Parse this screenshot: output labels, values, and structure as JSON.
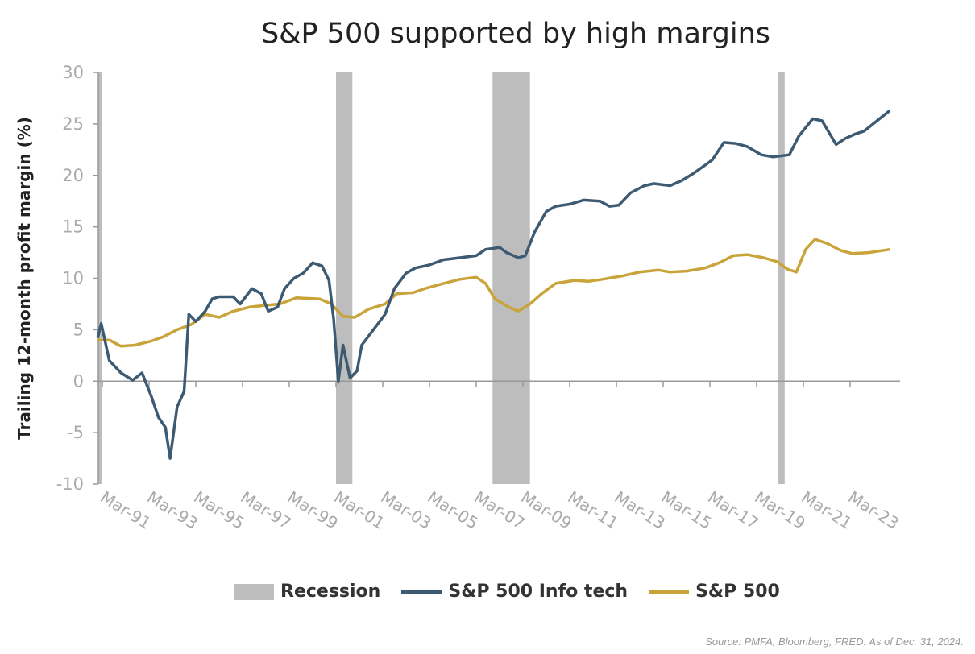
{
  "chart_data": {
    "type": "line",
    "title": "S&P 500 supported by high margins",
    "ylabel": "Trailing 12-month profit margin (%)",
    "xlabel": "",
    "ylim": [
      -10,
      30
    ],
    "yticks": [
      30,
      25,
      20,
      15,
      10,
      5,
      0,
      -5,
      -10
    ],
    "xlim": [
      1990.9,
      2025.2
    ],
    "xticks": [
      {
        "label": "Mar-91",
        "t": 1991.2
      },
      {
        "label": "Mar-93",
        "t": 1993.2
      },
      {
        "label": "Mar-95",
        "t": 1995.2
      },
      {
        "label": "Mar-97",
        "t": 1997.2
      },
      {
        "label": "Mar-99",
        "t": 1999.2
      },
      {
        "label": "Mar-01",
        "t": 2001.2
      },
      {
        "label": "Mar-03",
        "t": 2003.2
      },
      {
        "label": "Mar-05",
        "t": 2005.2
      },
      {
        "label": "Mar-07",
        "t": 2007.2
      },
      {
        "label": "Mar-09",
        "t": 2009.2
      },
      {
        "label": "Mar-11",
        "t": 2011.2
      },
      {
        "label": "Mar-13",
        "t": 2013.2
      },
      {
        "label": "Mar-15",
        "t": 2015.2
      },
      {
        "label": "Mar-17",
        "t": 2017.2
      },
      {
        "label": "Mar-19",
        "t": 2019.2
      },
      {
        "label": "Mar-21",
        "t": 2021.2
      },
      {
        "label": "Mar-23",
        "t": 2023.2
      }
    ],
    "grid": false,
    "legend_position": "bottom",
    "recessions": {
      "name": "Recession",
      "color": "#bdbdbd",
      "periods": [
        [
          1990.6,
          1991.2
        ],
        [
          2001.2,
          2001.9
        ],
        [
          2007.9,
          2009.5
        ],
        [
          2020.1,
          2020.4
        ]
      ]
    },
    "series": [
      {
        "name": "S&P 500 Info tech",
        "color": "#3d5a73",
        "points": [
          [
            1991.0,
            4.2
          ],
          [
            1991.15,
            5.6
          ],
          [
            1991.5,
            2
          ],
          [
            1992.0,
            0.8
          ],
          [
            1992.5,
            0.1
          ],
          [
            1992.9,
            0.8
          ],
          [
            1993.3,
            -1.5
          ],
          [
            1993.6,
            -3.5
          ],
          [
            1993.9,
            -4.5
          ],
          [
            1994.1,
            -7.5
          ],
          [
            1994.4,
            -2.5
          ],
          [
            1994.7,
            -1
          ],
          [
            1994.9,
            6.5
          ],
          [
            1995.2,
            5.8
          ],
          [
            1995.6,
            6.8
          ],
          [
            1995.9,
            8
          ],
          [
            1996.2,
            8.2
          ],
          [
            1996.8,
            8.2
          ],
          [
            1997.1,
            7.5
          ],
          [
            1997.6,
            9
          ],
          [
            1998.0,
            8.5
          ],
          [
            1998.3,
            6.8
          ],
          [
            1998.7,
            7.2
          ],
          [
            1999.0,
            9
          ],
          [
            1999.4,
            10
          ],
          [
            1999.8,
            10.5
          ],
          [
            2000.2,
            11.5
          ],
          [
            2000.6,
            11.2
          ],
          [
            2000.9,
            9.8
          ],
          [
            2001.1,
            6
          ],
          [
            2001.3,
            0
          ],
          [
            2001.5,
            3.5
          ],
          [
            2001.8,
            0.3
          ],
          [
            2002.1,
            1
          ],
          [
            2002.3,
            3.5
          ],
          [
            2002.8,
            5
          ],
          [
            2003.3,
            6.5
          ],
          [
            2003.7,
            9
          ],
          [
            2004.2,
            10.5
          ],
          [
            2004.6,
            11
          ],
          [
            2005.2,
            11.3
          ],
          [
            2005.8,
            11.8
          ],
          [
            2006.5,
            12
          ],
          [
            2007.2,
            12.2
          ],
          [
            2007.6,
            12.8
          ],
          [
            2008.2,
            13
          ],
          [
            2008.5,
            12.5
          ],
          [
            2009.0,
            12.0
          ],
          [
            2009.3,
            12.2
          ],
          [
            2009.7,
            14.5
          ],
          [
            2010.2,
            16.5
          ],
          [
            2010.6,
            17
          ],
          [
            2011.2,
            17.2
          ],
          [
            2011.8,
            17.6
          ],
          [
            2012.5,
            17.5
          ],
          [
            2012.9,
            17
          ],
          [
            2013.3,
            17.1
          ],
          [
            2013.8,
            18.3
          ],
          [
            2014.4,
            19
          ],
          [
            2014.8,
            19.2
          ],
          [
            2015.5,
            19
          ],
          [
            2016.0,
            19.5
          ],
          [
            2016.5,
            20.2
          ],
          [
            2017.0,
            21
          ],
          [
            2017.3,
            21.5
          ],
          [
            2017.8,
            23.2
          ],
          [
            2018.3,
            23.1
          ],
          [
            2018.8,
            22.8
          ],
          [
            2019.4,
            22
          ],
          [
            2019.9,
            21.8
          ],
          [
            2020.6,
            22
          ],
          [
            2021.0,
            23.8
          ],
          [
            2021.6,
            25.5
          ],
          [
            2022.0,
            25.3
          ],
          [
            2022.6,
            23
          ],
          [
            2023.0,
            23.6
          ],
          [
            2023.4,
            24
          ],
          [
            2023.8,
            24.3
          ],
          [
            2024.9,
            26.3
          ]
        ]
      },
      {
        "name": "S&P 500",
        "color": "#c9a43a",
        "points": [
          [
            1991.0,
            4.0
          ],
          [
            1991.5,
            4.0
          ],
          [
            1992.0,
            3.4
          ],
          [
            1992.6,
            3.5
          ],
          [
            1993.3,
            3.9
          ],
          [
            1993.8,
            4.3
          ],
          [
            1994.4,
            5
          ],
          [
            1995.0,
            5.5
          ],
          [
            1995.6,
            6.5
          ],
          [
            1996.2,
            6.2
          ],
          [
            1996.8,
            6.8
          ],
          [
            1997.5,
            7.2
          ],
          [
            1998.3,
            7.4
          ],
          [
            1998.8,
            7.5
          ],
          [
            1999.5,
            8.1
          ],
          [
            2000.5,
            8.0
          ],
          [
            2001.0,
            7.5
          ],
          [
            2001.5,
            6.3
          ],
          [
            2002.0,
            6.2
          ],
          [
            2002.6,
            7
          ],
          [
            2003.3,
            7.5
          ],
          [
            2003.8,
            8.5
          ],
          [
            2004.5,
            8.6
          ],
          [
            2005.0,
            9
          ],
          [
            2005.8,
            9.5
          ],
          [
            2006.5,
            9.9
          ],
          [
            2007.2,
            10.1
          ],
          [
            2007.6,
            9.5
          ],
          [
            2008.0,
            8.0
          ],
          [
            2008.6,
            7.2
          ],
          [
            2009.0,
            6.8
          ],
          [
            2009.5,
            7.5
          ],
          [
            2010.0,
            8.5
          ],
          [
            2010.6,
            9.5
          ],
          [
            2011.4,
            9.8
          ],
          [
            2012.0,
            9.7
          ],
          [
            2012.6,
            9.9
          ],
          [
            2013.4,
            10.2
          ],
          [
            2014.2,
            10.6
          ],
          [
            2015.0,
            10.8
          ],
          [
            2015.5,
            10.6
          ],
          [
            2016.2,
            10.7
          ],
          [
            2017.0,
            11
          ],
          [
            2017.6,
            11.5
          ],
          [
            2018.2,
            12.2
          ],
          [
            2018.8,
            12.3
          ],
          [
            2019.5,
            12
          ],
          [
            2020.1,
            11.6
          ],
          [
            2020.5,
            10.9
          ],
          [
            2020.9,
            10.6
          ],
          [
            2021.3,
            12.8
          ],
          [
            2021.7,
            13.8
          ],
          [
            2022.2,
            13.4
          ],
          [
            2022.8,
            12.7
          ],
          [
            2023.3,
            12.4
          ],
          [
            2024.0,
            12.5
          ],
          [
            2024.9,
            12.8
          ]
        ]
      }
    ],
    "source": "Source: PMFA, Bloomberg, FRED. As of Dec. 31, 2024."
  }
}
